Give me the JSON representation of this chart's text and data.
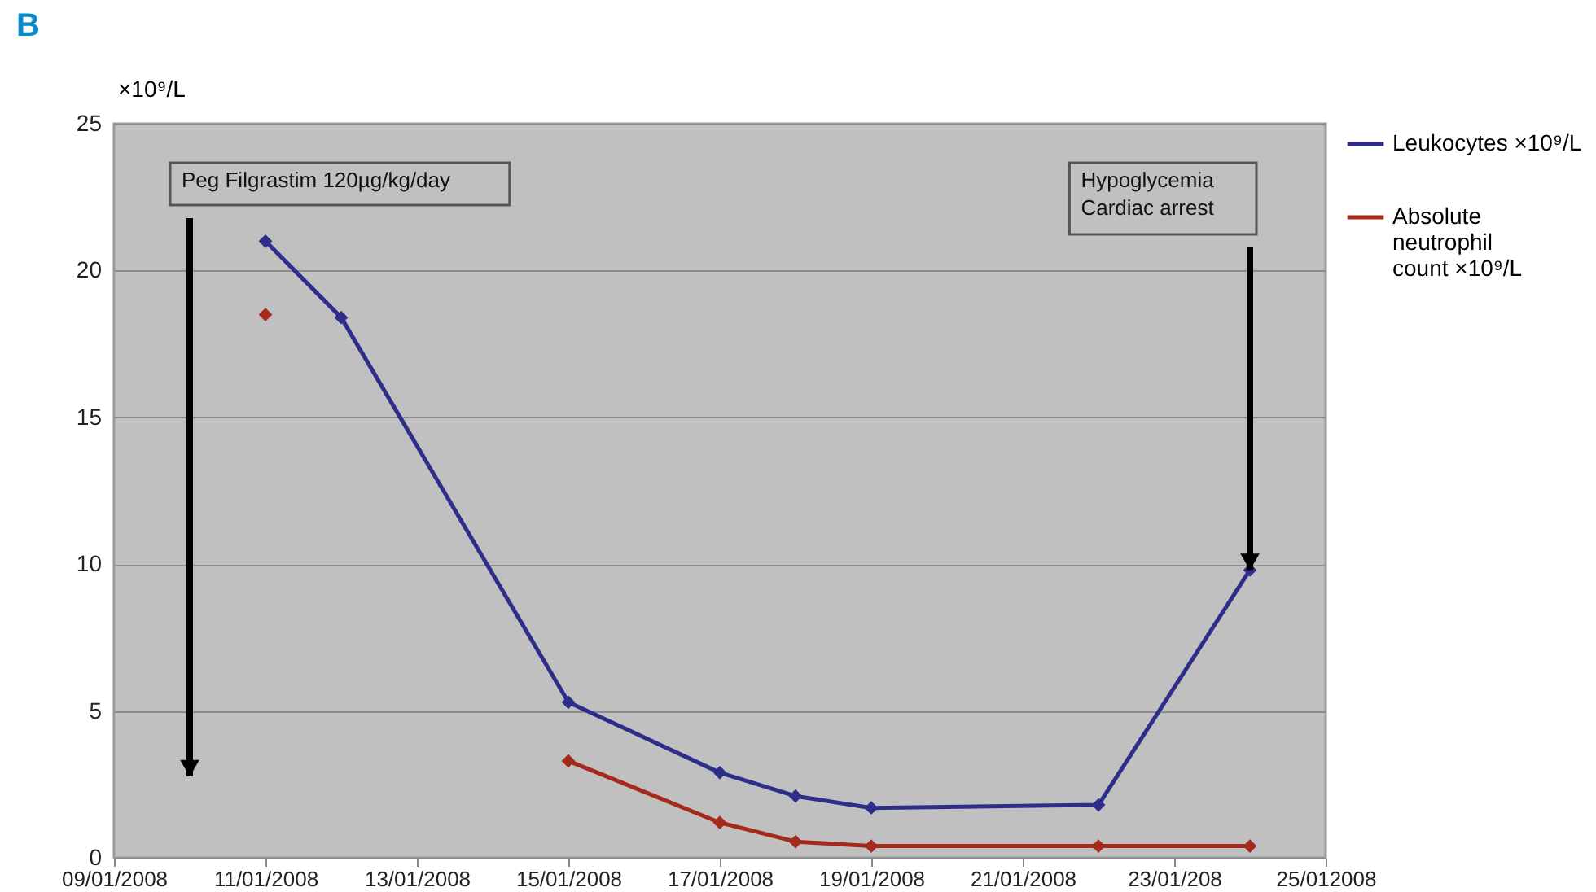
{
  "chart_data": {
    "type": "line",
    "title": "B",
    "ylabel": "×10⁹/L",
    "x": [
      "2008-01-11",
      "2008-01-12",
      "2008-01-15",
      "2008-01-17",
      "2008-01-18",
      "2008-01-19",
      "2008-01-22",
      "2008-01-24"
    ],
    "series": [
      {
        "name": "Leukocytes ×10⁹/L",
        "color": "#2e2e8a",
        "values": [
          21.0,
          18.4,
          5.3,
          2.9,
          2.1,
          1.7,
          1.8,
          9.8
        ]
      },
      {
        "name": "Absolute neutrophil count ×10⁹/L",
        "color": "#a52a1c",
        "values": [
          18.5,
          null,
          3.3,
          1.2,
          0.55,
          0.4,
          0.4,
          0.4
        ]
      }
    ],
    "xlim": [
      "2008-01-09",
      "2008-01-25"
    ],
    "xticks": [
      {
        "value": "2008-01-09",
        "label": "09/01/2008"
      },
      {
        "value": "2008-01-11",
        "label": "11/01/2008"
      },
      {
        "value": "2008-01-13",
        "label": "13/01/2008"
      },
      {
        "value": "2008-01-15",
        "label": "15/01/2008"
      },
      {
        "value": "2008-01-17",
        "label": "17/01/2008"
      },
      {
        "value": "2008-01-19",
        "label": "19/01/2008"
      },
      {
        "value": "2008-01-21",
        "label": "21/01/2008"
      },
      {
        "value": "2008-01-23",
        "label": "23/01/208"
      },
      {
        "value": "2008-01-25",
        "label": "25/012008"
      }
    ],
    "ylim": [
      0,
      25
    ],
    "yticks": [
      0,
      5,
      10,
      15,
      20,
      25
    ],
    "annotations": [
      "Peg Filgrastim 120µg/kg/day",
      "Hypoglycemia\nCardiac arrest"
    ],
    "grid": "y",
    "legend": "right",
    "marker": "diamond",
    "line_style": "solid"
  }
}
